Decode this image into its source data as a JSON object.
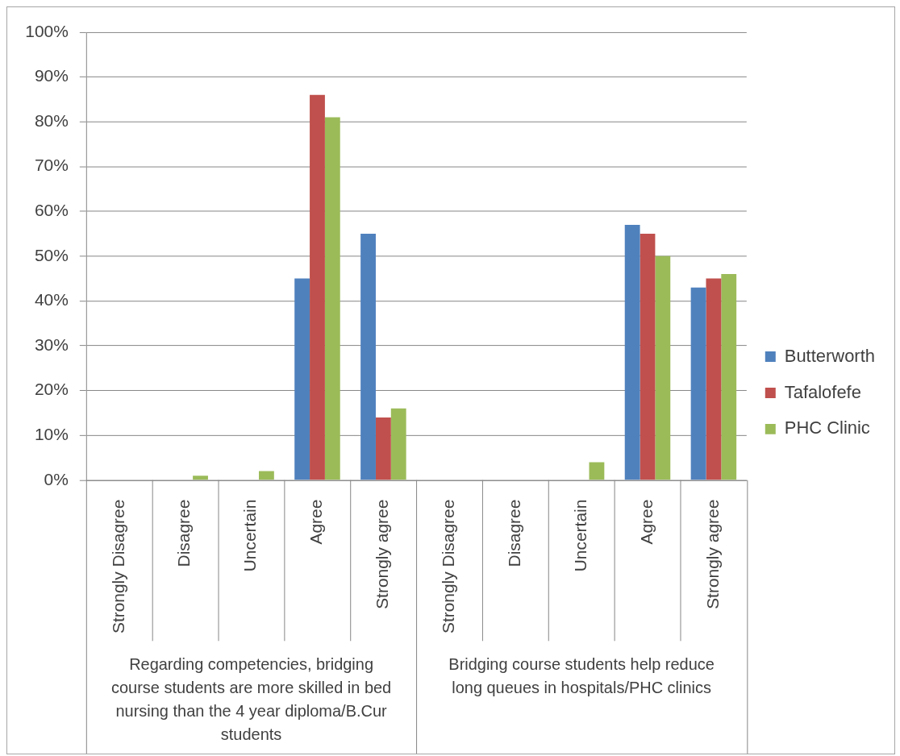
{
  "chart_data": {
    "type": "bar",
    "categories": [
      "Strongly Disagree",
      "Disagree",
      "Uncertain",
      "Agree",
      "Strongly agree",
      "Strongly Disagree",
      "Disagree",
      "Uncertain",
      "Agree",
      "Strongly agree"
    ],
    "series": [
      {
        "name": "Butterworth",
        "color": "#4f81bd",
        "values": [
          0,
          0,
          0,
          45,
          55,
          0,
          0,
          0,
          57,
          43
        ]
      },
      {
        "name": "Tafalofefe",
        "color": "#c0504d",
        "values": [
          0,
          0,
          0,
          86,
          14,
          0,
          0,
          0,
          55,
          45
        ]
      },
      {
        "name": "PHC Clinic",
        "color": "#9bbb59",
        "values": [
          0,
          1,
          2,
          81,
          16,
          0,
          0,
          4,
          50,
          46
        ]
      }
    ],
    "ylim": [
      0,
      100
    ],
    "yticks": [
      {
        "value": 0,
        "label": "0%"
      },
      {
        "value": 10,
        "label": "10%"
      },
      {
        "value": 20,
        "label": "20%"
      },
      {
        "value": 30,
        "label": "30%"
      },
      {
        "value": 40,
        "label": "40%"
      },
      {
        "value": 50,
        "label": "50%"
      },
      {
        "value": 60,
        "label": "60%"
      },
      {
        "value": 70,
        "label": "70%"
      },
      {
        "value": 80,
        "label": "80%"
      },
      {
        "value": 90,
        "label": "90%"
      },
      {
        "value": 100,
        "label": "100%"
      }
    ],
    "grid": "y",
    "legend": "right",
    "annotations": [
      "Regarding competencies, bridging course students are more skilled in bed nursing than the 4 year diploma/B.Cur students",
      "Bridging course students help reduce long queues in hospitals/PHC clinics"
    ]
  }
}
